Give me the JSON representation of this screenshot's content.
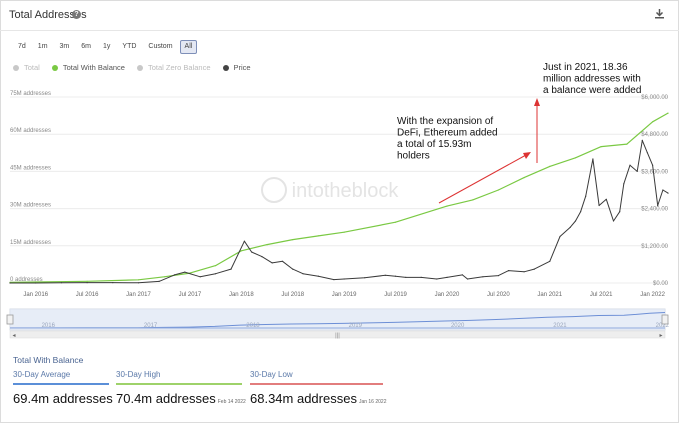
{
  "header": {
    "title": "Total Addresses",
    "help_icon": "question-icon",
    "download_icon": "download-icon"
  },
  "ranges": [
    "7d",
    "1m",
    "3m",
    "6m",
    "1y",
    "YTD",
    "Custom",
    "All"
  ],
  "active_range": "All",
  "legend": [
    {
      "label": "Total",
      "color": "#c8c8c8",
      "active": false
    },
    {
      "label": "Total With Balance",
      "color": "#7ac943",
      "active": true
    },
    {
      "label": "Total Zero Balance",
      "color": "#c8c8c8",
      "active": false
    },
    {
      "label": "Price",
      "color": "#444444",
      "active": true
    }
  ],
  "watermark": "intotheblock",
  "navigator_years": [
    "2016",
    "2017",
    "2018",
    "2019",
    "2020",
    "2021",
    "2022"
  ],
  "footer": {
    "title": "Total With Balance",
    "stats": [
      {
        "label": "30-Day Average",
        "value": "69.4m addresses",
        "date": "",
        "color": "#5b8fd8"
      },
      {
        "label": "30-Day High",
        "value": "70.4m addresses",
        "date": "Feb 14 2022",
        "color": "#9ed26a"
      },
      {
        "label": "30-Day Low",
        "value": "68.34m addresses",
        "date": "Jan 16 2022",
        "color": "#e27d7d"
      }
    ]
  },
  "annotations": [
    {
      "text": "With the expansion of\nDeFi, Ethereum added\na total of 15.93m\nholders"
    },
    {
      "text": "Just in 2021, 18.36\nmillion addresses with\na balance were added"
    }
  ],
  "chart_data": {
    "type": "line",
    "x_ticks": [
      "Jan 2016",
      "Jul 2016",
      "Jan 2017",
      "Jul 2017",
      "Jan 2018",
      "Jul 2018",
      "Jan 2019",
      "Jul 2019",
      "Jan 2020",
      "Jul 2020",
      "Jan 2021",
      "Jul 2021",
      "Jan 2022"
    ],
    "y_left_ticks": [
      "0 addresses",
      "15M addresses",
      "30M addresses",
      "45M addresses",
      "60M addresses",
      "75M addresses"
    ],
    "y_left_range": [
      0,
      75000000
    ],
    "y_right_ticks": [
      "$0.00",
      "$1,200.00",
      "$2,400.00",
      "$3,600.00",
      "$4,800.00",
      "$6,000.00"
    ],
    "y_right_range": [
      0,
      6000
    ],
    "grid": true,
    "legend_position": "top-left",
    "series": [
      {
        "name": "Total With Balance",
        "axis": "left",
        "color": "#7ac943",
        "x": [
          2015.75,
          2016.0,
          2016.5,
          2017.0,
          2017.25,
          2017.5,
          2017.75,
          2018.0,
          2018.25,
          2018.5,
          2018.75,
          2019.0,
          2019.5,
          2020.0,
          2020.25,
          2020.5,
          2020.75,
          2021.0,
          2021.25,
          2021.5,
          2021.75,
          2022.0,
          2022.15
        ],
        "values": [
          300000,
          400000,
          700000,
          1300000,
          2500000,
          4000000,
          7000000,
          13000000,
          15500000,
          17500000,
          19000000,
          20500000,
          24500000,
          31000000,
          33500000,
          37500000,
          42500000,
          47000000,
          50500000,
          55000000,
          56000000,
          65000000,
          68500000
        ]
      },
      {
        "name": "Price",
        "axis": "right",
        "color": "#3a3a3a",
        "x": [
          2015.75,
          2016.0,
          2016.25,
          2016.5,
          2016.75,
          2017.0,
          2017.2,
          2017.35,
          2017.45,
          2017.6,
          2017.75,
          2017.9,
          2018.03,
          2018.1,
          2018.2,
          2018.3,
          2018.4,
          2018.5,
          2018.6,
          2018.75,
          2018.9,
          2019.0,
          2019.2,
          2019.4,
          2019.5,
          2019.6,
          2019.75,
          2019.9,
          2020.0,
          2020.15,
          2020.2,
          2020.35,
          2020.5,
          2020.6,
          2020.75,
          2020.85,
          2021.0,
          2021.1,
          2021.2,
          2021.25,
          2021.3,
          2021.35,
          2021.42,
          2021.48,
          2021.55,
          2021.62,
          2021.68,
          2021.72,
          2021.78,
          2021.85,
          2021.9,
          2021.95,
          2022.0,
          2022.05,
          2022.1,
          2022.15
        ],
        "values": [
          1,
          1,
          10,
          12,
          12,
          8,
          50,
          260,
          350,
          200,
          300,
          450,
          1350,
          1000,
          850,
          650,
          700,
          450,
          300,
          220,
          110,
          130,
          170,
          250,
          220,
          180,
          180,
          130,
          180,
          260,
          130,
          200,
          240,
          400,
          360,
          450,
          700,
          1500,
          1800,
          2000,
          2300,
          2800,
          4000,
          2500,
          2700,
          2000,
          2300,
          3200,
          3800,
          3600,
          4600,
          4200,
          3800,
          2500,
          3000,
          2900
        ]
      }
    ]
  }
}
